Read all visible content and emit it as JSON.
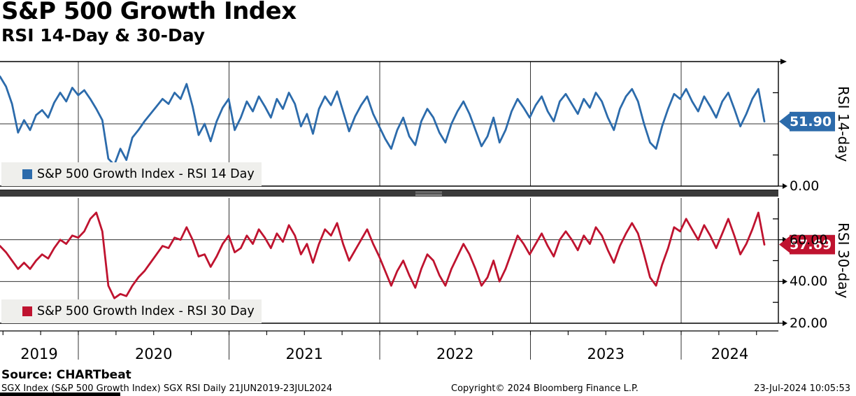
{
  "header": {
    "title": "S&P 500 Growth Index",
    "subtitle": "RSI 14-Day & 30-Day"
  },
  "colors": {
    "rsi14": "#2c6bab",
    "rsi30": "#bf132f",
    "legend_bg": "#efefec",
    "grid": "#333333",
    "frame": "#000000",
    "divider": "#3a3a3a"
  },
  "panels": [
    {
      "id": "rsi14",
      "axis_title": "RSI 14-day",
      "legend_label": "S&P 500 Growth Index - RSI 14 Day",
      "last_value_label": "51.90",
      "ylim": [
        0,
        100
      ],
      "gridlines": [
        50
      ],
      "minor_ticks": [
        25,
        75
      ],
      "axis_labels": [
        {
          "v": 0,
          "t": "0.00"
        }
      ]
    },
    {
      "id": "rsi30",
      "axis_title": "RSI 30-day",
      "legend_label": "S&P 500 Growth Index - RSI 30 Day",
      "last_value_label": "57.69",
      "ylim": [
        20,
        80
      ],
      "gridlines": [
        60,
        40
      ],
      "minor_ticks": [
        70,
        50,
        30
      ],
      "axis_labels": [
        {
          "v": 60,
          "t": "60.00"
        },
        {
          "v": 40,
          "t": "40.00"
        },
        {
          "v": 20,
          "t": "20.00"
        }
      ]
    }
  ],
  "xaxis": {
    "years": [
      "2019",
      "2020",
      "2021",
      "2022",
      "2023",
      "2024"
    ]
  },
  "footer": {
    "source": "Source: CHARTbeat",
    "left": "SGX Index (S&P 500 Growth Index) SGX RSI  Daily 21JUN2019-23JUL2024",
    "center": "Copyright© 2024 Bloomberg Finance L.P.",
    "right": "23-Jul-2024 10:05:53"
  },
  "chart_data": {
    "type": "line",
    "x_start": "21JUN2019",
    "x_end": "23JUL2024",
    "x_note": "values are uniformly spaced samples (approx. bi-weekly) of daily RSI, read from the plot",
    "legend_position": "bottom-left inside each panel",
    "grid": true,
    "series": [
      {
        "name": "S&P 500 Growth Index - RSI 14 Day",
        "panel": 0,
        "color": "#2c6bab",
        "last_value": 51.9,
        "ylim": [
          0,
          100
        ],
        "values": [
          88,
          80,
          66,
          43,
          53,
          45,
          57,
          61,
          55,
          67,
          75,
          68,
          79,
          73,
          77,
          70,
          62,
          53,
          22,
          17,
          30,
          21,
          39,
          45,
          52,
          58,
          64,
          70,
          66,
          75,
          70,
          82,
          64,
          41,
          50,
          36,
          52,
          63,
          70,
          45,
          55,
          68,
          60,
          72,
          64,
          55,
          70,
          62,
          75,
          66,
          48,
          58,
          42,
          62,
          72,
          65,
          76,
          60,
          44,
          56,
          65,
          72,
          58,
          48,
          38,
          30,
          45,
          55,
          40,
          33,
          52,
          62,
          55,
          43,
          35,
          50,
          60,
          68,
          58,
          45,
          32,
          40,
          55,
          35,
          45,
          60,
          70,
          63,
          55,
          65,
          72,
          60,
          52,
          68,
          74,
          66,
          58,
          70,
          63,
          75,
          68,
          55,
          45,
          62,
          72,
          78,
          68,
          50,
          35,
          30,
          48,
          62,
          74,
          70,
          78,
          68,
          60,
          72,
          64,
          55,
          68,
          75,
          62,
          48,
          58,
          70,
          78,
          51.9
        ]
      },
      {
        "name": "S&P 500 Growth Index - RSI 30 Day",
        "panel": 1,
        "color": "#bf132f",
        "last_value": 57.69,
        "ylim": [
          20,
          80
        ],
        "values": [
          57,
          54,
          50,
          46,
          49,
          46,
          50,
          53,
          51,
          56,
          60,
          58,
          62,
          61,
          64,
          70,
          73,
          64,
          38,
          32,
          34,
          33,
          38,
          42,
          45,
          49,
          53,
          57,
          56,
          61,
          60,
          66,
          60,
          52,
          53,
          47,
          52,
          58,
          62,
          54,
          56,
          62,
          58,
          65,
          61,
          56,
          63,
          59,
          67,
          62,
          53,
          58,
          49,
          58,
          65,
          62,
          68,
          58,
          50,
          55,
          60,
          65,
          58,
          52,
          45,
          38,
          45,
          50,
          43,
          37,
          46,
          53,
          50,
          43,
          38,
          46,
          52,
          58,
          53,
          46,
          38,
          42,
          50,
          40,
          46,
          54,
          62,
          58,
          53,
          58,
          63,
          57,
          52,
          60,
          64,
          60,
          55,
          62,
          58,
          66,
          62,
          55,
          49,
          57,
          63,
          68,
          63,
          53,
          42,
          38,
          48,
          56,
          66,
          64,
          70,
          65,
          60,
          67,
          62,
          56,
          63,
          70,
          62,
          53,
          58,
          65,
          73,
          57.69
        ]
      }
    ]
  }
}
